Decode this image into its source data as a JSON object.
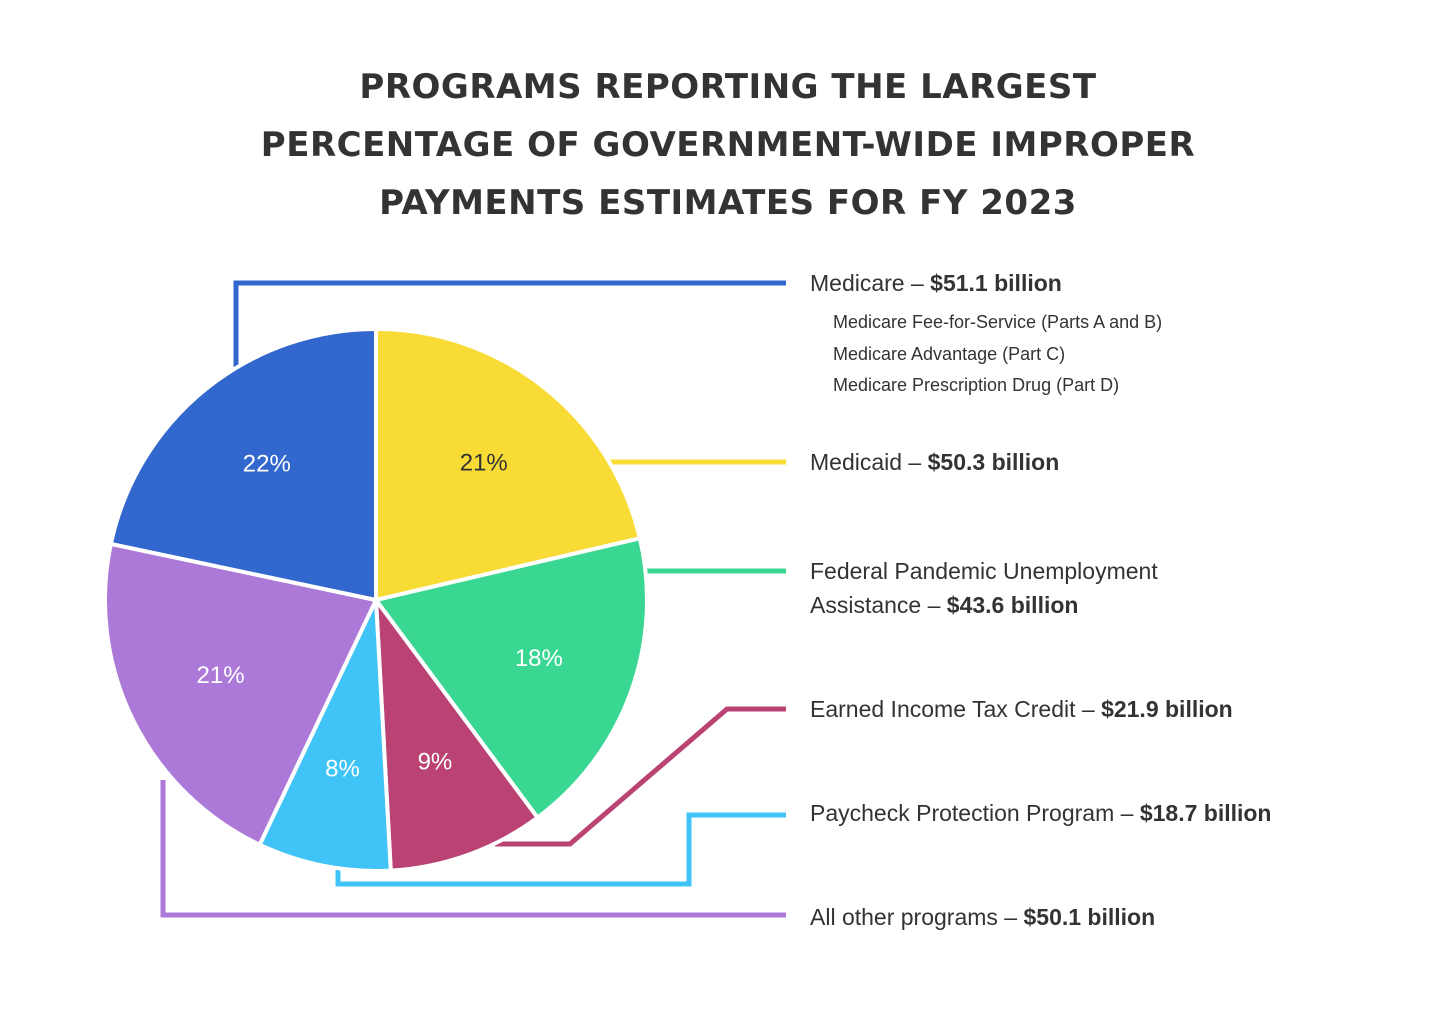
{
  "title_lines": [
    "PROGRAMS REPORTING THE LARGEST",
    "PERCENTAGE OF GOVERNMENT-WIDE IMPROPER",
    "PAYMENTS ESTIMATES FOR FY 2023"
  ],
  "chart_data": {
    "type": "pie",
    "title": "PROGRAMS REPORTING THE LARGEST PERCENTAGE OF GOVERNMENT-WIDE IMPROPER PAYMENTS ESTIMATES FOR FY 2023",
    "slices": [
      {
        "name": "Medicaid",
        "amount": "$50.3 billion",
        "value": 50.3,
        "percent": 21,
        "percent_label": "21%",
        "color": "#F9DB35",
        "label_color": "#333333"
      },
      {
        "name": "Federal Pandemic Unemployment Assistance",
        "amount": "$43.6 billion",
        "value": 43.6,
        "percent": 18,
        "percent_label": "18%",
        "color": "#3AD793",
        "label_color": "#ffffff"
      },
      {
        "name": "Earned Income Tax Credit",
        "amount": "$21.9 billion",
        "value": 21.9,
        "percent": 9,
        "percent_label": "9%",
        "color": "#BA4374",
        "label_color": "#ffffff"
      },
      {
        "name": "Paycheck Protection Program",
        "amount": "$18.7 billion",
        "value": 18.7,
        "percent": 8,
        "percent_label": "8%",
        "color": "#40C3F7",
        "label_color": "#ffffff"
      },
      {
        "name": "All other programs",
        "amount": "$50.1 billion",
        "value": 50.1,
        "percent": 21,
        "percent_label": "21%",
        "color": "#AD79D9",
        "label_color": "#ffffff"
      },
      {
        "name": "Medicare",
        "amount": "$51.1 billion",
        "value": 51.1,
        "percent": 22,
        "percent_label": "22%",
        "color": "#3267CE",
        "label_color": "#ffffff"
      }
    ],
    "legend_placement": "right"
  },
  "legend": {
    "medicare": {
      "name": "Medicare – ",
      "amount": "$51.1 billion",
      "sub_items": [
        "Medicare Fee-for-Service (Parts A and B)",
        "Medicare Advantage (Part C)",
        "Medicare Prescription Drug (Part D)"
      ]
    },
    "medicaid": {
      "name": "Medicaid – ",
      "amount": "$50.3 billion"
    },
    "fpua": {
      "name_line1": "Federal Pandemic Unemployment",
      "name_line2": "Assistance – ",
      "amount": "$43.6 billion"
    },
    "eitc": {
      "name": "Earned Income Tax Credit – ",
      "amount": "$21.9 billion"
    },
    "ppp": {
      "name": "Paycheck Protection Program – ",
      "amount": "$18.7 billion"
    },
    "other": {
      "name": "All other programs – ",
      "amount": "$50.1 billion"
    }
  }
}
